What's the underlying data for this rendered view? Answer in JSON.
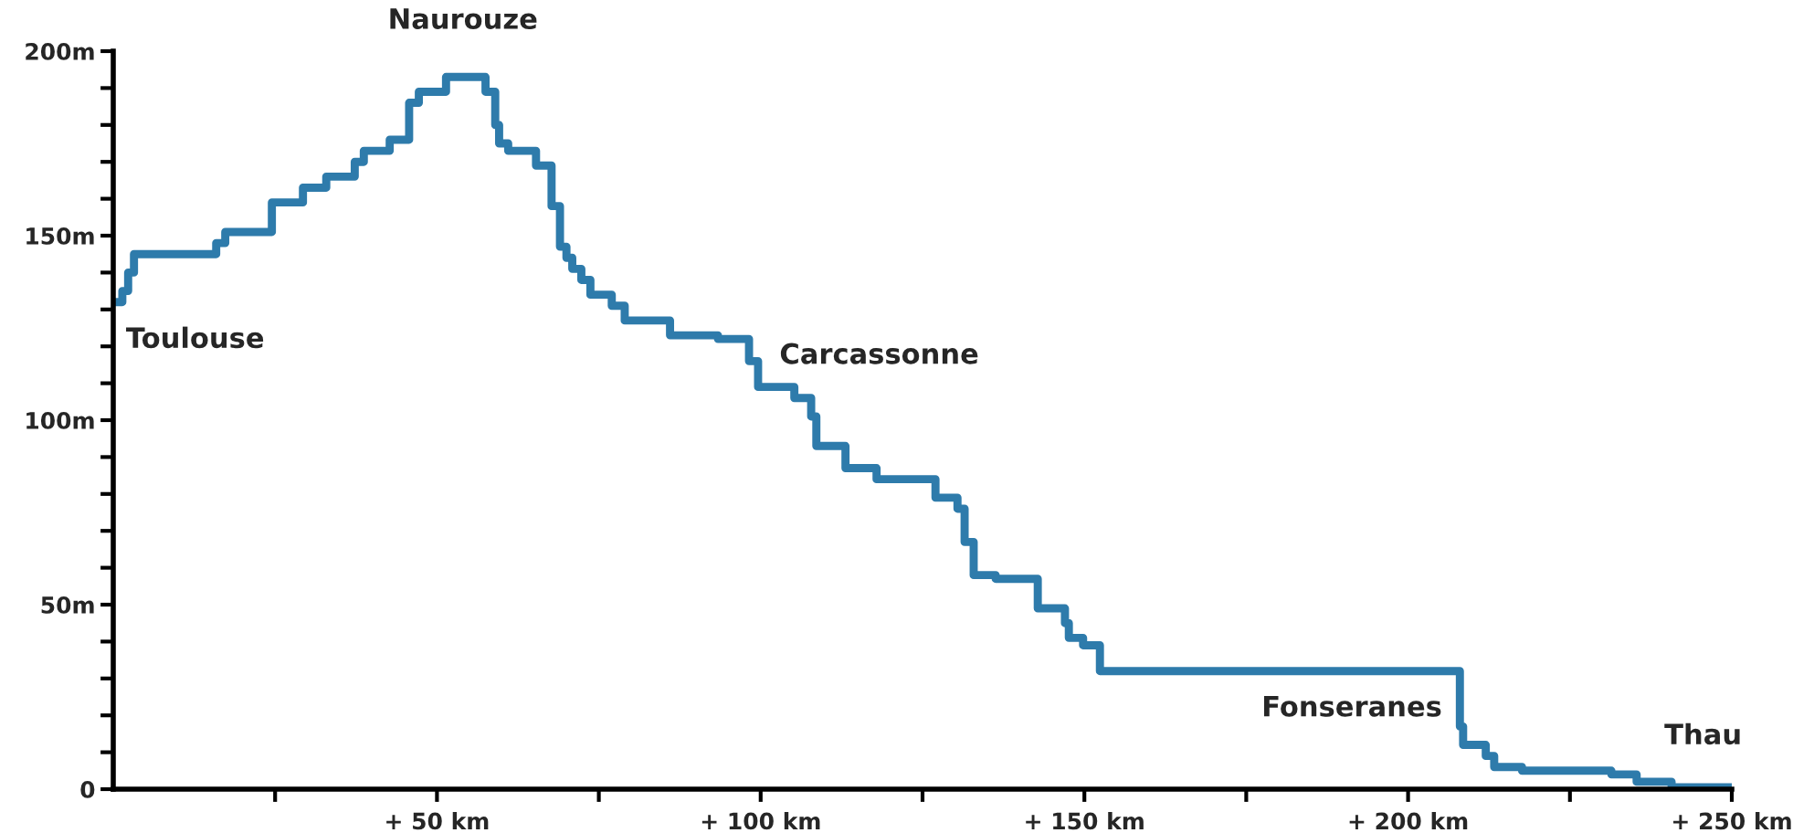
{
  "chart_data": {
    "type": "step",
    "x": [
      0,
      1.4,
      2.3,
      3.2,
      15.9,
      17.3,
      24.5,
      29.3,
      32.9,
      37.3,
      38.7,
      42.7,
      45.7,
      47.2,
      51.4,
      57.5,
      59,
      59.6,
      61,
      65.3,
      67.7,
      69,
      70,
      70.9,
      72.3,
      73.7,
      77,
      79,
      86,
      93.4,
      98.2,
      99.6,
      105.2,
      107.8,
      108.6,
      113.1,
      117.9,
      127,
      130.4,
      131.5,
      132.9,
      136.3,
      142.8,
      147,
      147.6,
      149.8,
      152.4,
      208,
      208.5,
      212,
      213.3,
      217.6,
      231.4,
      235.3,
      240.7,
      250
    ],
    "series": [
      {
        "color": "#2e7bab",
        "values": [
          132,
          135,
          140,
          145,
          148,
          151,
          159,
          163,
          166,
          170,
          173,
          176,
          186,
          189,
          193,
          189,
          180,
          175,
          173,
          169,
          158,
          147,
          144,
          141,
          138,
          134,
          131,
          127,
          123,
          122,
          116,
          109,
          106,
          101,
          93,
          87,
          84,
          79,
          76,
          67,
          58,
          57,
          49,
          45,
          41,
          39,
          32,
          17,
          12,
          9,
          6,
          5,
          4,
          2,
          0.5,
          0.5
        ]
      }
    ],
    "xlim": [
      0,
      250
    ],
    "xticks": [
      {
        "value": 25,
        "label": null
      },
      {
        "value": 50,
        "label": "+ 50 km"
      },
      {
        "value": 75,
        "label": null
      },
      {
        "value": 100,
        "label": "+ 100 km"
      },
      {
        "value": 125,
        "label": null
      },
      {
        "value": 150,
        "label": "+ 150 km"
      },
      {
        "value": 175,
        "label": null
      },
      {
        "value": 200,
        "label": "+ 200 km"
      },
      {
        "value": 225,
        "label": null
      },
      {
        "value": 250,
        "label": "+ 250 km"
      }
    ],
    "ylim": [
      0,
      200
    ],
    "yticks": [
      {
        "value": 0,
        "label": "0"
      },
      {
        "value": 10,
        "label": null
      },
      {
        "value": 20,
        "label": null
      },
      {
        "value": 30,
        "label": null
      },
      {
        "value": 40,
        "label": null
      },
      {
        "value": 50,
        "label": "50m"
      },
      {
        "value": 60,
        "label": null
      },
      {
        "value": 70,
        "label": null
      },
      {
        "value": 80,
        "label": null
      },
      {
        "value": 90,
        "label": null
      },
      {
        "value": 100,
        "label": "100m"
      },
      {
        "value": 110,
        "label": null
      },
      {
        "value": 120,
        "label": null
      },
      {
        "value": 130,
        "label": null
      },
      {
        "value": 140,
        "label": null
      },
      {
        "value": 150,
        "label": "150m"
      },
      {
        "value": 160,
        "label": null
      },
      {
        "value": 170,
        "label": null
      },
      {
        "value": 180,
        "label": null
      },
      {
        "value": 190,
        "label": null
      },
      {
        "value": 200,
        "label": "200m"
      }
    ],
    "annotations": [
      {
        "text": "Toulouse",
        "x": 0,
        "y": 132
      },
      {
        "text": "Naurouze",
        "x": 54,
        "y": 193
      },
      {
        "text": "Carcassonne",
        "x": 98.2,
        "y": 116
      },
      {
        "text": "Fonseranes",
        "x": 208,
        "y": 17
      },
      {
        "text": "Thau",
        "x": 250,
        "y": 0.5
      }
    ],
    "grid": false,
    "legend": false,
    "marker": "none",
    "line_style": "solid"
  }
}
